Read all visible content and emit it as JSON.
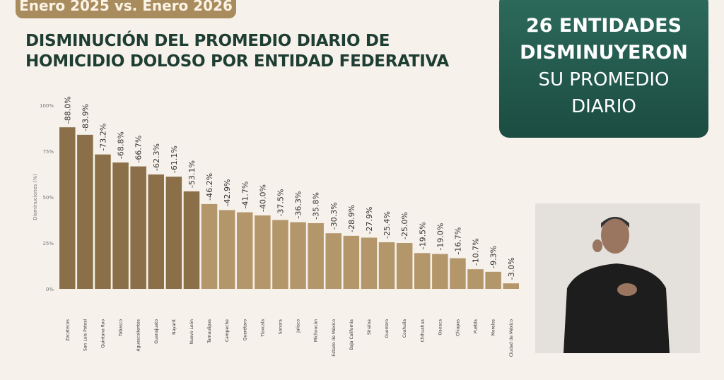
{
  "header": {
    "period": "Enero 2025 vs. Enero 2026",
    "title_line1": "DISMINUCIÓN DEL PROMEDIO DIARIO DE",
    "title_line2": "HOMICIDIO DOLOSO POR ENTIDAD FEDERATIVA"
  },
  "callout": {
    "line1": "26 ENTIDADES",
    "line2": "DISMINUYERON",
    "line3": "SU PROMEDIO",
    "line4": "DIARIO"
  },
  "colors": {
    "top_bars": "#8b6f48",
    "other_bars": "#b3966a",
    "title": "#1e3d33",
    "callout_bg": "#235b4e"
  },
  "chart_data": {
    "type": "bar",
    "title": "DISMINUCIÓN DEL PROMEDIO DIARIO DE HOMICIDIO DOLOSO POR ENTIDAD FEDERATIVA",
    "ylabel": "Disminuciones (%)",
    "ylim": [
      0,
      100
    ],
    "yticks": [
      "0%",
      "25%",
      "50%",
      "75%",
      "100%"
    ],
    "categories": [
      "Zacatecas",
      "San Luis Potosí",
      "Quintana Roo",
      "Tabasco",
      "Aguascalientes",
      "Guanajuato",
      "Nayarit",
      "Nuevo León",
      "Tamaulipas",
      "Campeche",
      "Querétaro",
      "Tlaxcala",
      "Sonora",
      "Jalisco",
      "Michoacán",
      "Estado de México",
      "Baja California",
      "Sinaloa",
      "Guerrero",
      "Coahuila",
      "Chihuahua",
      "Oaxaca",
      "Chiapas",
      "Puebla",
      "Morelos",
      "Ciudad de México"
    ],
    "values": [
      88.0,
      83.9,
      73.2,
      68.8,
      66.7,
      62.3,
      61.1,
      53.1,
      46.2,
      42.9,
      41.7,
      40.0,
      37.5,
      36.3,
      35.8,
      30.3,
      28.9,
      27.9,
      25.4,
      25.0,
      19.5,
      19.0,
      16.7,
      10.7,
      9.3,
      3.0
    ],
    "data_labels": [
      "-88.0%",
      "-83.9%",
      "-73.2%",
      "-68.8%",
      "-66.7%",
      "-62.3%",
      "-61.1%",
      "-53.1%",
      "-46.2%",
      "-42.9%",
      "-41.7%",
      "-40.0%",
      "-37.5%",
      "-36.3%",
      "-35.8%",
      "-30.3%",
      "-28.9%",
      "-27.9%",
      "-25.4%",
      "-25.0%",
      "-19.5%",
      "-19.0%",
      "-16.7%",
      "-10.7%",
      "-9.3%",
      "-3.0%"
    ],
    "grid": false,
    "legend": "none"
  }
}
